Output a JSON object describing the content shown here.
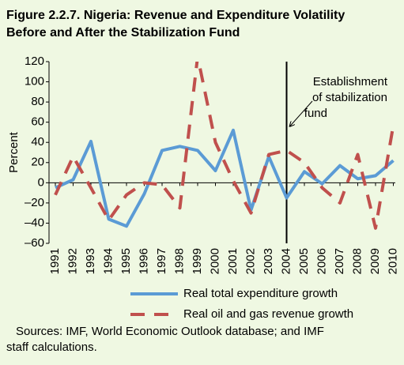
{
  "chart_data": {
    "type": "line",
    "title": [
      "Figure 2.2.7. Nigeria: Revenue and Expenditure Volatility",
      "Before and After the Stabilization Fund"
    ],
    "y_label": "Percent",
    "categories": [
      "1991",
      "1992",
      "1993",
      "1994",
      "1995",
      "1996",
      "1997",
      "1998",
      "1999",
      "2000",
      "2001",
      "2002",
      "2003",
      "2004",
      "2005",
      "2006",
      "2007",
      "2008",
      "2009",
      "2010"
    ],
    "series": [
      {
        "name": "Real total expenditure growth",
        "color": "#5b9bd5",
        "dashed": false,
        "values": [
          -5,
          3,
          41,
          -36,
          -43,
          -11,
          32,
          36,
          32,
          12,
          52,
          -27,
          26,
          -15,
          11,
          -1,
          17,
          4,
          7,
          22
        ]
      },
      {
        "name": "Real oil and gas revenue growth",
        "color": "#c0504d",
        "dashed": true,
        "values": [
          -12,
          26,
          -5,
          -37,
          -12,
          0,
          -2,
          -25,
          125,
          40,
          2,
          -30,
          28,
          32,
          20,
          -5,
          -20,
          28,
          -45,
          57
        ]
      }
    ],
    "ylim": [
      -60,
      120
    ],
    "yticks": [
      {
        "value": -60,
        "label": "–60"
      },
      {
        "value": -40,
        "label": "–40"
      },
      {
        "value": -20,
        "label": "–20"
      },
      0,
      20,
      40,
      60,
      80,
      100,
      120
    ],
    "annotation": {
      "lines": [
        "Establishment",
        "of stabilization",
        "fund"
      ],
      "category": "2004"
    },
    "source": [
      "Sources: IMF, World Economic Outlook database; and IMF",
      "staff calculations."
    ]
  }
}
